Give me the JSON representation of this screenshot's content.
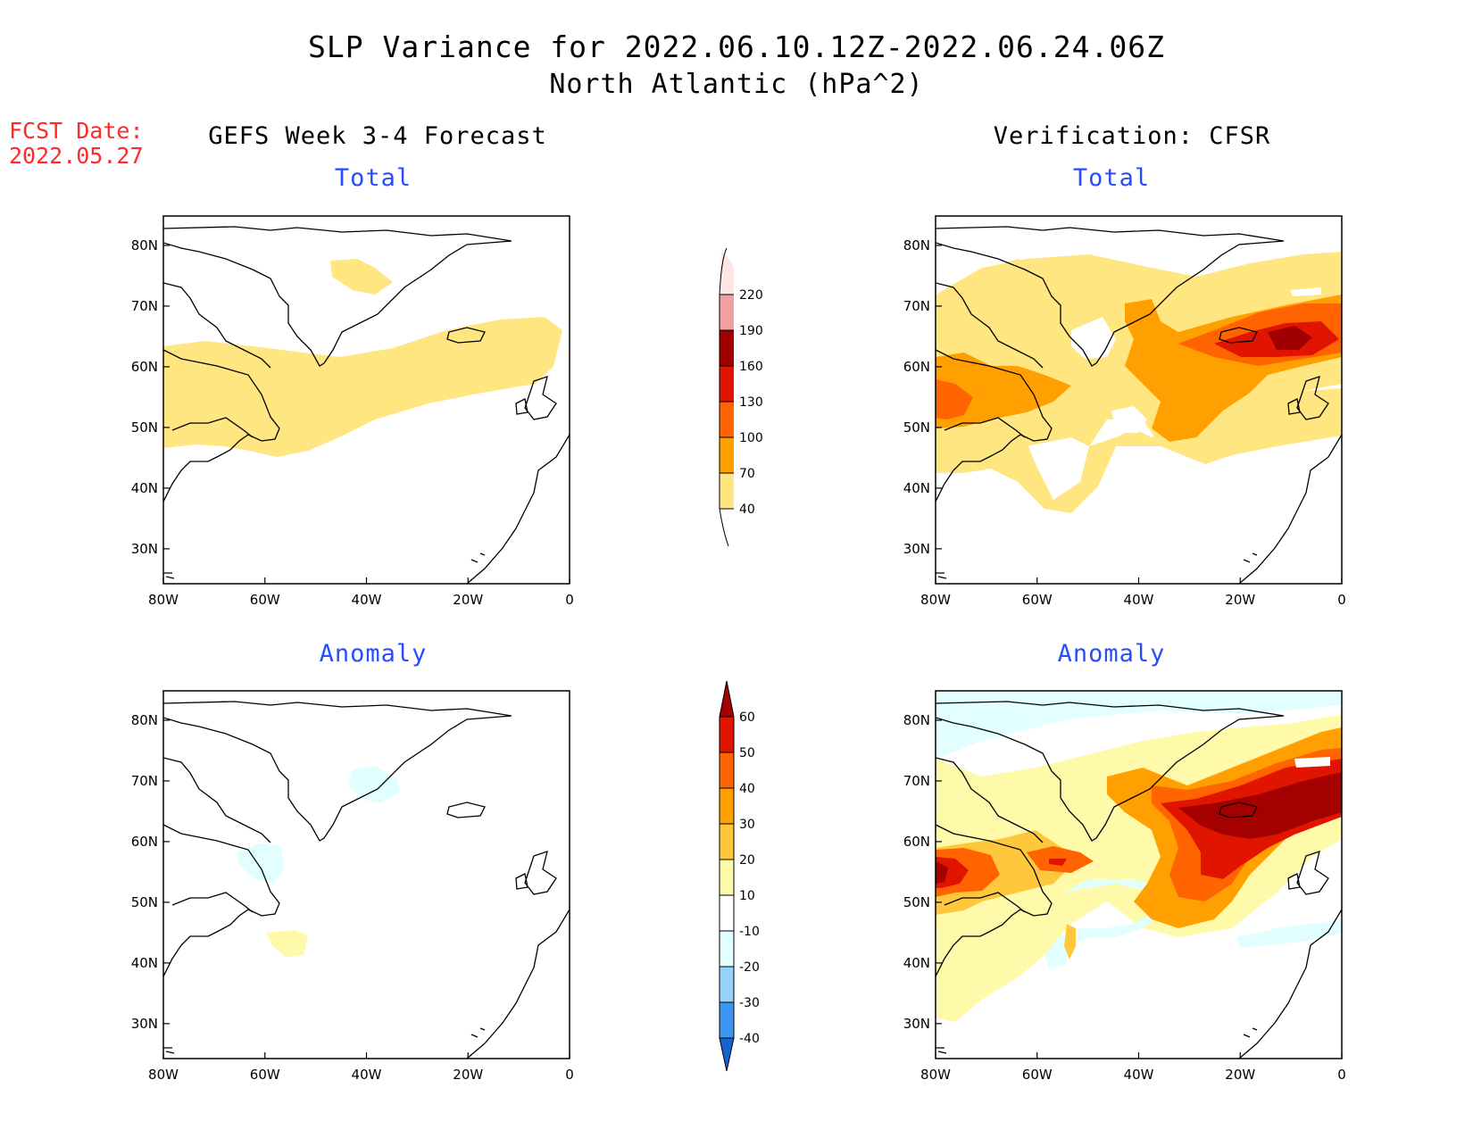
{
  "title": {
    "line1": "SLP Variance for 2022.06.10.12Z-2022.06.24.06Z",
    "line2": "North Atlantic (hPa^2)"
  },
  "fcst_date": {
    "label": "FCST Date:",
    "value": "2022.05.27"
  },
  "columns": {
    "left": "GEFS Week 3-4 Forecast",
    "right": "Verification: CFSR"
  },
  "panels": {
    "top_left": "Total",
    "top_right": "Total",
    "bottom_left": "Anomaly",
    "bottom_right": "Anomaly"
  },
  "axes": {
    "lat_labels": [
      "80N",
      "70N",
      "60N",
      "50N",
      "40N",
      "30N"
    ],
    "lon_labels": [
      "80W",
      "60W",
      "40W",
      "20W",
      "0"
    ]
  },
  "colorbar_total": {
    "levels": [
      "40",
      "70",
      "100",
      "130",
      "160",
      "190",
      "220"
    ],
    "colors": [
      "#ffe680",
      "#ffa000",
      "#ff6400",
      "#e01400",
      "#a00000",
      "#f2a0a0",
      "#fce6e6"
    ]
  },
  "colorbar_anomaly": {
    "levels": [
      "-40",
      "-30",
      "-20",
      "-10",
      "10",
      "20",
      "30",
      "40",
      "50",
      "60"
    ],
    "colors": [
      "#1464d2",
      "#3c96f0",
      "#96d2fa",
      "#e1ffff",
      "#ffffff",
      "#fffaaa",
      "#ffc83c",
      "#ffa000",
      "#ff6400",
      "#e11400",
      "#a50000"
    ]
  }
}
